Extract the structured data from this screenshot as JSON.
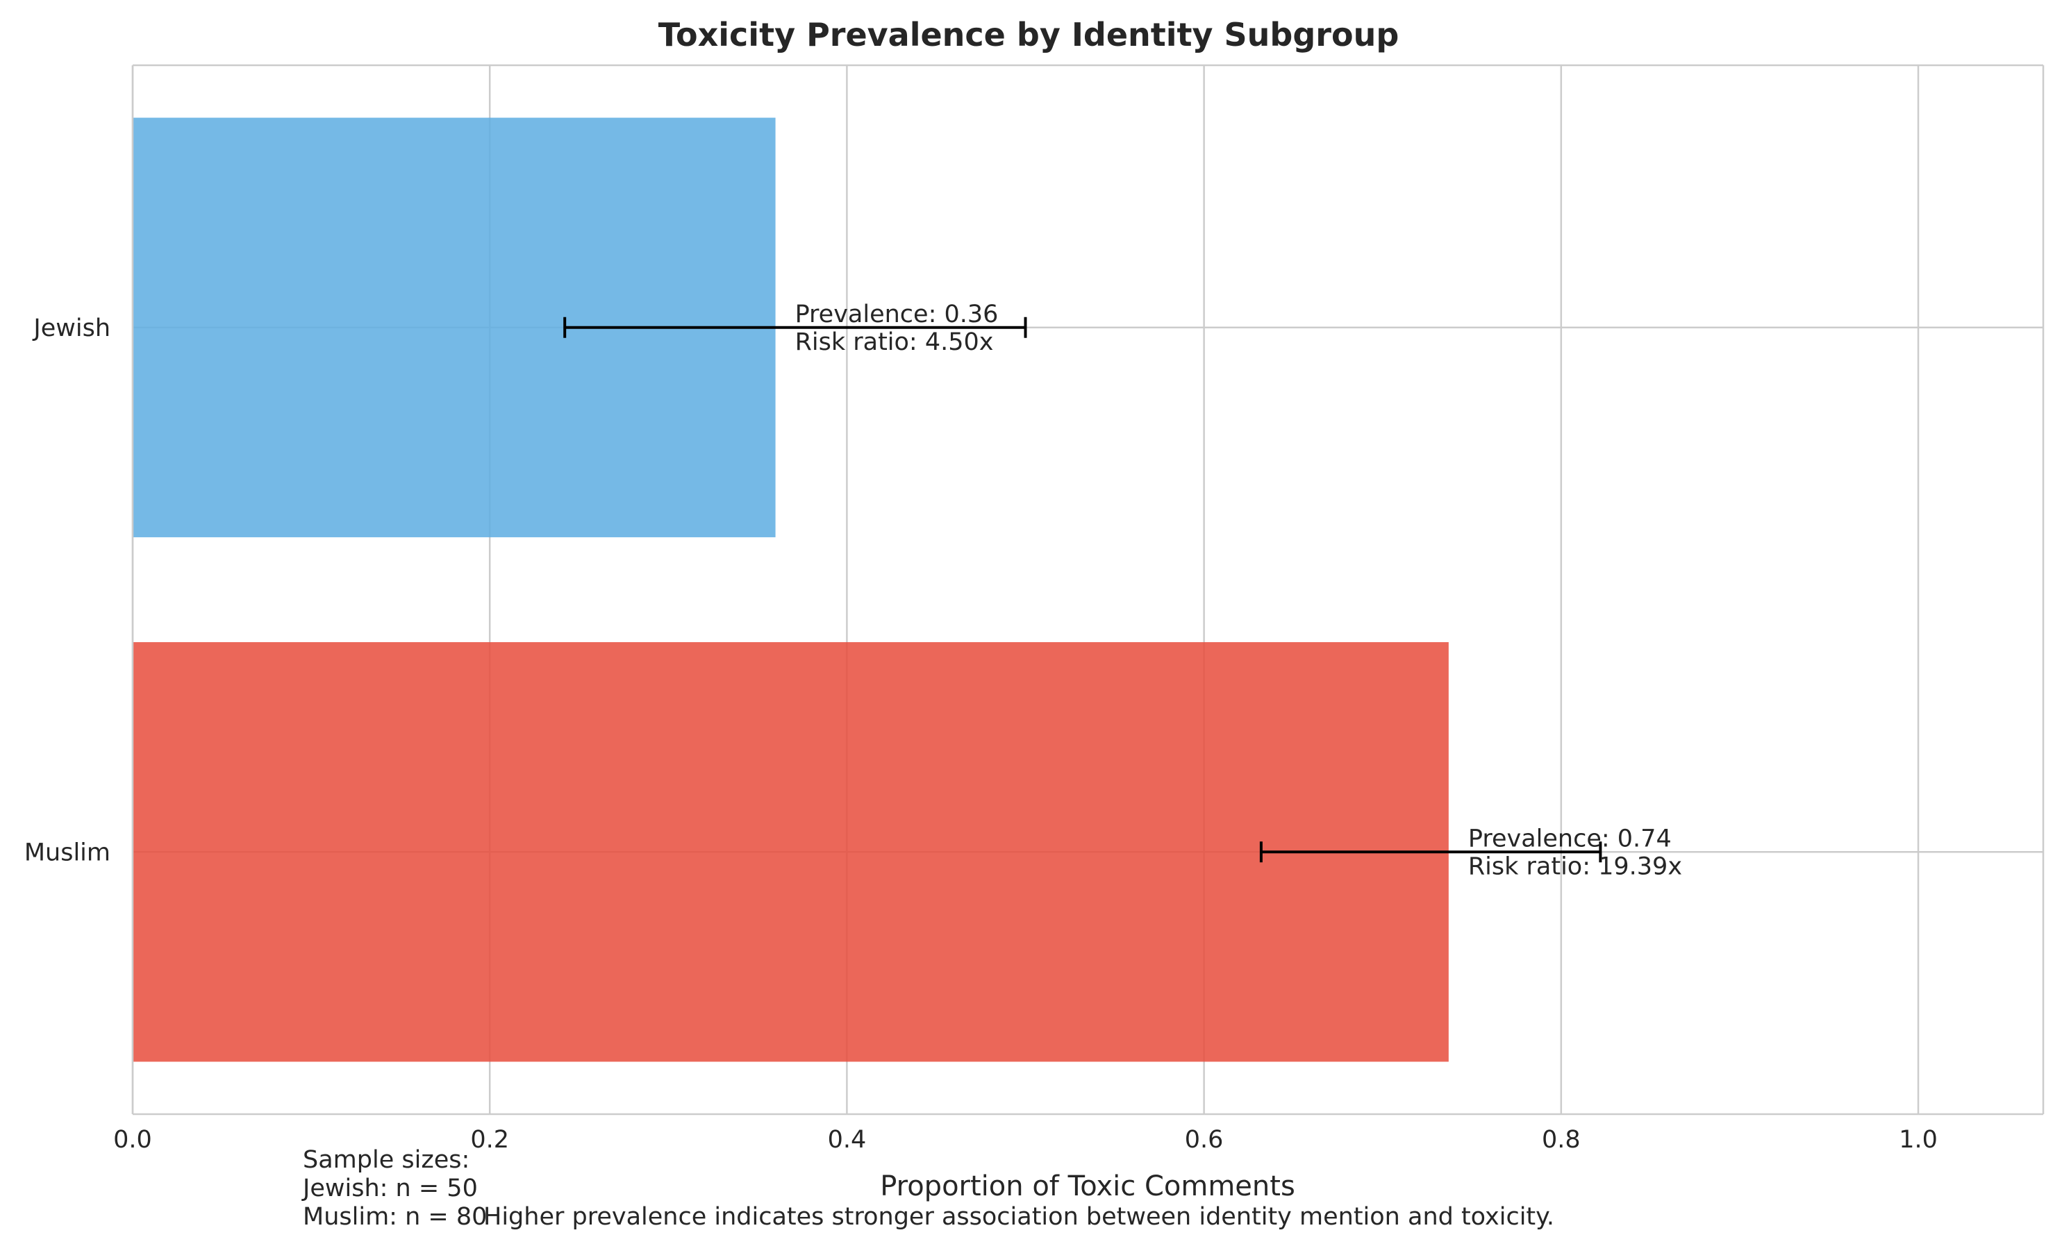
{
  "chart_data": {
    "type": "bar",
    "orientation": "horizontal",
    "title": "Toxicity Prevalence by Identity Subgroup",
    "xlabel": "Proportion of Toxic Comments",
    "ylabel": "",
    "xlim": [
      0,
      1.07
    ],
    "xticks": [
      0.0,
      0.2,
      0.4,
      0.6,
      0.8,
      1.0
    ],
    "xtick_labels": [
      "0.0",
      "0.2",
      "0.4",
      "0.6",
      "0.8",
      "1.0"
    ],
    "grid": true,
    "categories": [
      "Jewish",
      "Muslim"
    ],
    "values": [
      0.36,
      0.737
    ],
    "colors": [
      "#5dade2",
      "#e74c3c"
    ],
    "error_bars": [
      {
        "low": 0.242,
        "high": 0.5
      },
      {
        "low": 0.632,
        "high": 0.822
      }
    ],
    "annotations": [
      {
        "line1": "Prevalence: 0.36",
        "line2": "Risk ratio: 4.50x"
      },
      {
        "line1": "Prevalence: 0.74",
        "line2": "Risk ratio: 19.39x"
      }
    ],
    "footnotes": {
      "sample_header": "Sample sizes:",
      "sample_lines": [
        "Jewish: n = 50",
        "Muslim: n = 80"
      ],
      "note": "Higher prevalence indicates stronger association between identity mention and toxicity."
    }
  }
}
